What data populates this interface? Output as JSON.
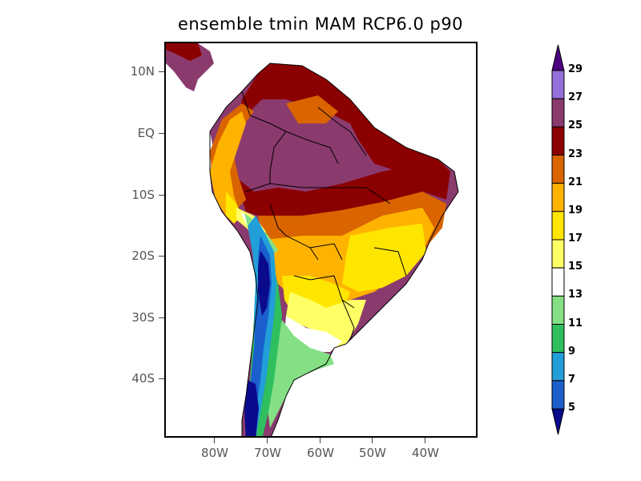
{
  "title": "ensemble tmin MAM RCP6.0 p90",
  "chart_data": {
    "type": "heatmap",
    "title": "ensemble tmin MAM RCP6.0 p90",
    "variable": "tmin",
    "season": "MAM",
    "scenario": "RCP6.0",
    "statistic": "p90",
    "region": "South America",
    "y_ticks": [
      "10N",
      "EQ",
      "10S",
      "20S",
      "30S",
      "40S"
    ],
    "x_ticks": [
      "80W",
      "70W",
      "60W",
      "50W",
      "40W"
    ],
    "lat_range": [
      -50,
      15
    ],
    "lon_range": [
      -90,
      -30
    ],
    "colorbar": {
      "levels": [
        5,
        7,
        9,
        11,
        13,
        15,
        17,
        19,
        21,
        23,
        25,
        27,
        29
      ],
      "colors": [
        "#0a0a8c",
        "#1a5fcc",
        "#229ed8",
        "#2fbf5f",
        "#85e085",
        "#ffffff",
        "#ffff66",
        "#ffe600",
        "#ffb300",
        "#d96400",
        "#8b0000",
        "#8b3a6e",
        "#9370db",
        "#4b0082"
      ],
      "extend": "both"
    }
  }
}
